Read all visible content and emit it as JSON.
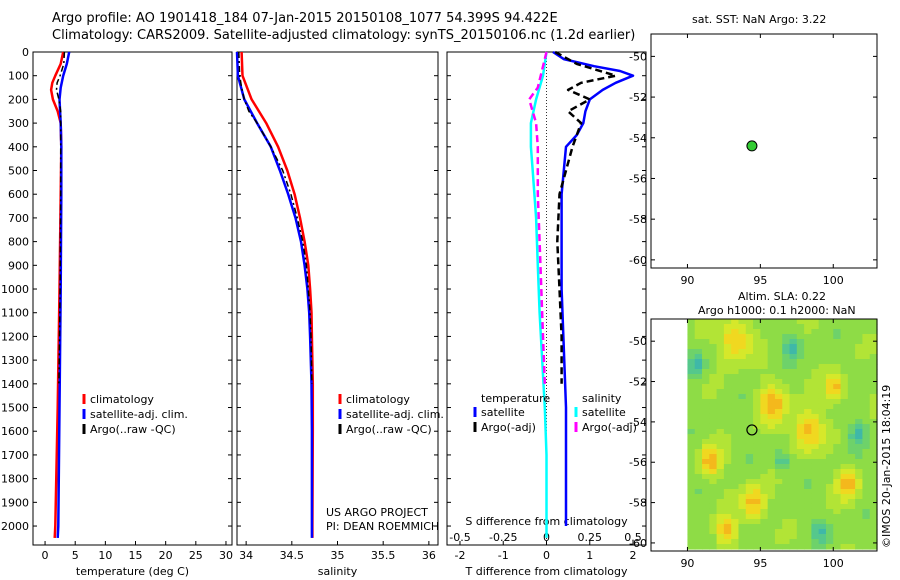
{
  "header": {
    "line1": "Argo profile: AO 1901418_184 07-Jan-2015 20150108_1077 54.399S 94.422E",
    "line2": "Climatology: CARS2009. Satellite-adjusted climatology: synTS_20150106.nc (1.2d earlier)"
  },
  "sst_map": {
    "title": "sat. SST: NaN Argo: 3.22"
  },
  "sla_map": {
    "title_line1": "Altim. SLA: 0.22",
    "title_line2": "Argo h1000: 0.1 h2000: NaN"
  },
  "credits": {
    "line1": "US ARGO PROJECT",
    "line2": "PI: DEAN ROEMMICH",
    "imos": "©IMOS 20-Jan-2015 18:04:19"
  },
  "colors": {
    "climatology": "#ff0000",
    "satellite": "#0000ff",
    "argo": "#000000",
    "sat_salinity": "#00ffff",
    "argo_salinity": "#ff00ff",
    "argo_marker": "#33cc33"
  },
  "chart_data": [
    {
      "type": "line",
      "xlabel": "temperature (deg C)",
      "ylabel": "",
      "xlim": [
        -2,
        31
      ],
      "ylim": [
        2080,
        0
      ],
      "xticks": [
        "0",
        "5",
        "10",
        "15",
        "20",
        "25",
        "30"
      ],
      "yticks": [
        "0",
        "100",
        "200",
        "300",
        "400",
        "500",
        "600",
        "700",
        "800",
        "900",
        "1000",
        "1100",
        "1200",
        "1300",
        "1400",
        "1500",
        "1600",
        "1700",
        "1800",
        "1900",
        "2000"
      ],
      "legend": [
        "climatology",
        "satellite-adj. clim.",
        "Argo(..raw -QC)"
      ],
      "legend_position": "lower-center",
      "series": [
        {
          "name": "climatology",
          "y": [
            0,
            50,
            100,
            130,
            160,
            200,
            250,
            300,
            400,
            600,
            1000,
            1500,
            2000,
            2050
          ],
          "values": [
            3.0,
            2.6,
            1.7,
            1.2,
            1.0,
            1.3,
            2.1,
            2.6,
            2.7,
            2.6,
            2.4,
            2.1,
            1.7,
            1.6
          ]
        },
        {
          "name": "satellite-adj. clim.",
          "y": [
            0,
            50,
            100,
            150,
            200,
            250,
            300,
            400,
            600,
            1000,
            1500,
            2000,
            2050
          ],
          "values": [
            4.0,
            3.6,
            3.0,
            2.6,
            2.4,
            2.5,
            2.6,
            2.7,
            2.7,
            2.6,
            2.4,
            2.2,
            2.1
          ]
        },
        {
          "name": "Argo(..raw -QC)",
          "y": [
            0,
            50,
            100,
            130,
            160,
            200,
            250,
            300,
            400,
            600,
            1000,
            1400
          ],
          "values": [
            3.2,
            3.1,
            2.5,
            2.0,
            1.9,
            2.3,
            2.6,
            2.6,
            2.6,
            2.6,
            2.5,
            2.3
          ]
        }
      ]
    },
    {
      "type": "line",
      "xlabel": "salinity",
      "xlim": [
        33.9,
        36.1
      ],
      "ylim": [
        2080,
        0
      ],
      "xticks": [
        "34",
        "34.5",
        "35",
        "35.5",
        "36"
      ],
      "legend": [
        "climatology",
        "satellite-adj. clim.",
        "Argo(..raw -QC)"
      ],
      "legend_position": "lower-right",
      "series": [
        {
          "name": "climatology",
          "y": [
            0,
            100,
            200,
            300,
            400,
            500,
            600,
            700,
            800,
            900,
            1000,
            1100,
            1200,
            1400,
            1600,
            2000,
            2050
          ],
          "values": [
            33.95,
            33.96,
            34.06,
            34.22,
            34.35,
            34.45,
            34.53,
            34.59,
            34.64,
            34.68,
            34.7,
            34.715,
            34.72,
            34.73,
            34.73,
            34.725,
            34.725
          ]
        },
        {
          "name": "satellite-adj. clim.",
          "y": [
            0,
            100,
            200,
            300,
            400,
            500,
            600,
            700,
            800,
            900,
            1000,
            1100,
            1200,
            1400,
            1600,
            2000,
            2050
          ],
          "values": [
            33.9,
            33.91,
            33.98,
            34.12,
            34.27,
            34.37,
            34.46,
            34.54,
            34.6,
            34.64,
            34.67,
            34.69,
            34.7,
            34.715,
            34.72,
            34.72,
            34.72
          ]
        },
        {
          "name": "Argo(..raw -QC)",
          "y": [
            0,
            100,
            150,
            200,
            250,
            300,
            400,
            500,
            600,
            700,
            800,
            900,
            1000,
            1100,
            1200,
            1400
          ],
          "values": [
            33.92,
            33.93,
            33.95,
            33.98,
            34.03,
            34.12,
            34.27,
            34.4,
            34.49,
            34.56,
            34.62,
            34.66,
            34.68,
            34.7,
            34.71,
            34.72
          ]
        }
      ]
    },
    {
      "type": "line",
      "xlabel": "T difference from climatology",
      "xlabel_secondary": "S difference from climatology",
      "xlim": [
        -2.3,
        2.3
      ],
      "ylim": [
        2080,
        0
      ],
      "xticks": [
        "-2",
        "-1",
        "0",
        "1",
        "2"
      ],
      "xticks_secondary": [
        "-0.5",
        "-0.25",
        "0",
        "0.25",
        "0.5"
      ],
      "legend_groups": [
        {
          "title": "temperature",
          "items": [
            "satellite",
            "Argo(-adj)"
          ]
        },
        {
          "title": "salinity",
          "items": [
            "satellite",
            "Argo(-adj)"
          ]
        }
      ],
      "series": [
        {
          "name": "temperature satellite",
          "y": [
            0,
            30,
            60,
            80,
            100,
            130,
            160,
            200,
            250,
            300,
            350,
            400,
            500,
            600,
            800,
            1000,
            1500,
            2000
          ],
          "values": [
            0.15,
            0.4,
            1.1,
            1.7,
            2.0,
            1.6,
            1.3,
            1.0,
            0.9,
            0.85,
            0.7,
            0.45,
            0.4,
            0.35,
            0.35,
            0.35,
            0.45,
            0.45
          ]
        },
        {
          "name": "temperature Argo(-adj)",
          "y": [
            0,
            50,
            100,
            130,
            160,
            200,
            250,
            300,
            400,
            500,
            600,
            800,
            1000,
            1200,
            1400
          ],
          "values": [
            0.2,
            0.7,
            1.6,
            0.8,
            0.5,
            1.0,
            0.5,
            0.8,
            0.6,
            0.45,
            0.3,
            0.25,
            0.3,
            0.35,
            0.35
          ]
        },
        {
          "name": "salinity satellite",
          "y": [
            0,
            100,
            200,
            300,
            400,
            500,
            700,
            900,
            1100,
            1300,
            1500,
            1700,
            1900,
            2050
          ],
          "values": [
            0.0,
            -0.02,
            -0.06,
            -0.09,
            -0.09,
            -0.08,
            -0.06,
            -0.05,
            -0.04,
            -0.025,
            -0.01,
            0.0,
            0.0,
            0.0
          ]
        },
        {
          "name": "salinity Argo(-adj)",
          "y": [
            0,
            150,
            200,
            300,
            400,
            600,
            800,
            1000,
            1200,
            1400
          ],
          "values": [
            0.0,
            -0.05,
            -0.1,
            -0.06,
            -0.05,
            -0.05,
            -0.04,
            -0.03,
            -0.02,
            -0.01
          ]
        }
      ]
    },
    {
      "type": "scatter",
      "title": "sat. SST: NaN Argo: 3.22",
      "xlim": [
        87.5,
        103
      ],
      "ylim": [
        -60.4,
        -48.9
      ],
      "xticks": [
        "90",
        "95",
        "100"
      ],
      "yticks": [
        "-50",
        "-52",
        "-54",
        "-56",
        "-58",
        "-60"
      ],
      "points": [
        {
          "x": 94.422,
          "y": -54.399
        }
      ]
    },
    {
      "type": "heatmap",
      "title": "Altim. SLA: 0.22",
      "xlim": [
        87.5,
        103
      ],
      "ylim": [
        -60.4,
        -48.9
      ],
      "xticks": [
        "90",
        "95",
        "100"
      ],
      "yticks": [
        "-50",
        "-52",
        "-54",
        "-56",
        "-58",
        "-60"
      ],
      "image_extent": [
        90,
        103,
        -60.3,
        -48.9
      ],
      "points": [
        {
          "x": 94.422,
          "y": -54.399
        }
      ]
    }
  ]
}
